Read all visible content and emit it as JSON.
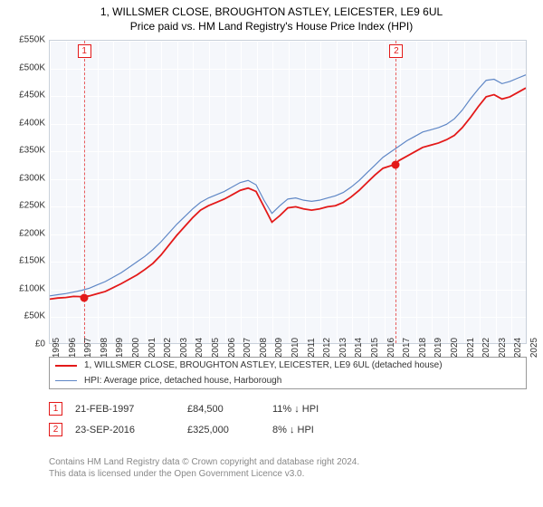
{
  "title": "1, WILLSMER CLOSE, BROUGHTON ASTLEY, LEICESTER, LE9 6UL",
  "subtitle": "Price paid vs. HM Land Registry's House Price Index (HPI)",
  "title_fontsize": 12,
  "subtitle_fontsize": 12,
  "plot": {
    "background_color": "#f5f7fb",
    "grid_color": "#ffffff",
    "border_color": "#c8d0da",
    "y": {
      "min": 0,
      "max": 550000,
      "step": 50000,
      "labels": [
        "£0",
        "£50K",
        "£100K",
        "£150K",
        "£200K",
        "£250K",
        "£300K",
        "£350K",
        "£400K",
        "£450K",
        "£500K",
        "£550K"
      ]
    },
    "x": {
      "min": 1995,
      "max": 2025,
      "step": 1,
      "labels": [
        "1995",
        "1996",
        "1997",
        "1998",
        "1999",
        "2000",
        "2001",
        "2002",
        "2003",
        "2004",
        "2005",
        "2006",
        "2007",
        "2008",
        "2009",
        "2010",
        "2011",
        "2012",
        "2013",
        "2014",
        "2015",
        "2016",
        "2017",
        "2018",
        "2019",
        "2020",
        "2021",
        "2022",
        "2023",
        "2024",
        "2025"
      ]
    },
    "series": [
      {
        "name": "price_paid",
        "color": "#e31919",
        "width": 1.8,
        "data": [
          [
            1995,
            80000
          ],
          [
            1995.5,
            82000
          ],
          [
            1996,
            83000
          ],
          [
            1996.5,
            85000
          ],
          [
            1997.14,
            84500
          ],
          [
            1997.5,
            86000
          ],
          [
            1998,
            90000
          ],
          [
            1998.5,
            94000
          ],
          [
            1999,
            101000
          ],
          [
            1999.5,
            108000
          ],
          [
            2000,
            116000
          ],
          [
            2000.5,
            124000
          ],
          [
            2001,
            134000
          ],
          [
            2001.5,
            145000
          ],
          [
            2002,
            160000
          ],
          [
            2002.5,
            178000
          ],
          [
            2003,
            196000
          ],
          [
            2003.5,
            212000
          ],
          [
            2004,
            228000
          ],
          [
            2004.5,
            242000
          ],
          [
            2005,
            250000
          ],
          [
            2005.5,
            256000
          ],
          [
            2006,
            262000
          ],
          [
            2006.5,
            270000
          ],
          [
            2007,
            278000
          ],
          [
            2007.5,
            282000
          ],
          [
            2008,
            276000
          ],
          [
            2008.5,
            248000
          ],
          [
            2009,
            220000
          ],
          [
            2009.5,
            232000
          ],
          [
            2010,
            246000
          ],
          [
            2010.5,
            248000
          ],
          [
            2011,
            244000
          ],
          [
            2011.5,
            242000
          ],
          [
            2012,
            244000
          ],
          [
            2012.5,
            248000
          ],
          [
            2013,
            250000
          ],
          [
            2013.5,
            256000
          ],
          [
            2014,
            266000
          ],
          [
            2014.5,
            278000
          ],
          [
            2015,
            292000
          ],
          [
            2015.5,
            306000
          ],
          [
            2016,
            318000
          ],
          [
            2016.73,
            325000
          ],
          [
            2017,
            332000
          ],
          [
            2017.5,
            340000
          ],
          [
            2018,
            348000
          ],
          [
            2018.5,
            356000
          ],
          [
            2019,
            360000
          ],
          [
            2019.5,
            364000
          ],
          [
            2020,
            370000
          ],
          [
            2020.5,
            378000
          ],
          [
            2021,
            392000
          ],
          [
            2021.5,
            410000
          ],
          [
            2022,
            430000
          ],
          [
            2022.5,
            448000
          ],
          [
            2023,
            452000
          ],
          [
            2023.5,
            444000
          ],
          [
            2024,
            448000
          ],
          [
            2024.5,
            456000
          ],
          [
            2025,
            464000
          ]
        ]
      },
      {
        "name": "hpi",
        "color": "#5f87c6",
        "width": 1.2,
        "data": [
          [
            1995,
            86000
          ],
          [
            1995.5,
            88000
          ],
          [
            1996,
            90000
          ],
          [
            1996.5,
            93000
          ],
          [
            1997,
            96000
          ],
          [
            1997.5,
            100000
          ],
          [
            1998,
            106000
          ],
          [
            1998.5,
            112000
          ],
          [
            1999,
            120000
          ],
          [
            1999.5,
            128000
          ],
          [
            2000,
            138000
          ],
          [
            2000.5,
            148000
          ],
          [
            2001,
            158000
          ],
          [
            2001.5,
            170000
          ],
          [
            2002,
            184000
          ],
          [
            2002.5,
            200000
          ],
          [
            2003,
            216000
          ],
          [
            2003.5,
            230000
          ],
          [
            2004,
            244000
          ],
          [
            2004.5,
            256000
          ],
          [
            2005,
            264000
          ],
          [
            2005.5,
            270000
          ],
          [
            2006,
            276000
          ],
          [
            2006.5,
            284000
          ],
          [
            2007,
            292000
          ],
          [
            2007.5,
            296000
          ],
          [
            2008,
            288000
          ],
          [
            2008.5,
            260000
          ],
          [
            2009,
            236000
          ],
          [
            2009.5,
            250000
          ],
          [
            2010,
            262000
          ],
          [
            2010.5,
            264000
          ],
          [
            2011,
            260000
          ],
          [
            2011.5,
            258000
          ],
          [
            2012,
            260000
          ],
          [
            2012.5,
            264000
          ],
          [
            2013,
            268000
          ],
          [
            2013.5,
            274000
          ],
          [
            2014,
            284000
          ],
          [
            2014.5,
            296000
          ],
          [
            2015,
            310000
          ],
          [
            2015.5,
            324000
          ],
          [
            2016,
            338000
          ],
          [
            2016.5,
            348000
          ],
          [
            2017,
            358000
          ],
          [
            2017.5,
            368000
          ],
          [
            2018,
            376000
          ],
          [
            2018.5,
            384000
          ],
          [
            2019,
            388000
          ],
          [
            2019.5,
            392000
          ],
          [
            2020,
            398000
          ],
          [
            2020.5,
            408000
          ],
          [
            2021,
            424000
          ],
          [
            2021.5,
            444000
          ],
          [
            2022,
            462000
          ],
          [
            2022.5,
            478000
          ],
          [
            2023,
            480000
          ],
          [
            2023.5,
            472000
          ],
          [
            2024,
            476000
          ],
          [
            2024.5,
            482000
          ],
          [
            2025,
            488000
          ]
        ]
      }
    ],
    "markers": [
      {
        "x": 1997.14,
        "y": 84500,
        "color": "#e31919",
        "label": "1"
      },
      {
        "x": 2016.73,
        "y": 325000,
        "color": "#e31919",
        "label": "2"
      }
    ]
  },
  "legend": {
    "items": [
      {
        "color": "#e31919",
        "width": 2,
        "text": "1, WILLSMER CLOSE, BROUGHTON ASTLEY, LEICESTER, LE9 6UL (detached house)"
      },
      {
        "color": "#5f87c6",
        "width": 1.2,
        "text": "HPI: Average price, detached house, Harborough"
      }
    ]
  },
  "transactions": [
    {
      "num": "1",
      "date": "21-FEB-1997",
      "price": "£84,500",
      "diff": "11% ↓ HPI"
    },
    {
      "num": "2",
      "date": "23-SEP-2016",
      "price": "£325,000",
      "diff": "8% ↓ HPI"
    }
  ],
  "footer": {
    "line1": "Contains HM Land Registry data © Crown copyright and database right 2024.",
    "line2": "This data is licensed under the Open Government Licence v3.0."
  }
}
